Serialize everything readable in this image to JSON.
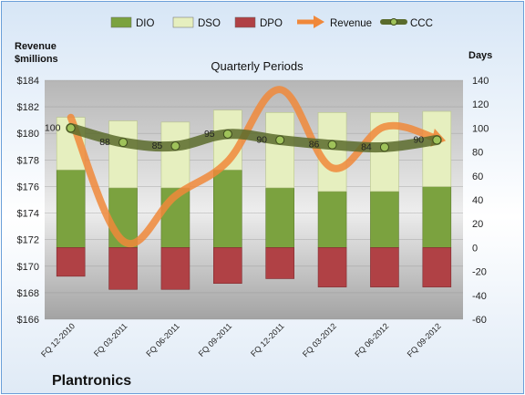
{
  "chart_data": {
    "type": "bar",
    "title": "Quarterly Periods",
    "company": "Plantronics",
    "left_axis_label": "Revenue\n$millions",
    "right_axis_label": "Days",
    "left_axis": {
      "min": 166,
      "max": 184,
      "step": 2,
      "prefix": "$"
    },
    "right_axis": {
      "min": -60,
      "max": 140,
      "step": 20
    },
    "categories": [
      "FQ 12-2010",
      "FQ 03-2011",
      "FQ 06-2011",
      "FQ 09-2011",
      "FQ 12-2011",
      "FQ 03-2012",
      "FQ 06-2012",
      "FQ 09-2012"
    ],
    "legend_position": "top",
    "series": [
      {
        "name": "DIO",
        "kind": "stacked-bar",
        "axis": "right",
        "color": "#7ba23f",
        "values": [
          65,
          50,
          50,
          65,
          50,
          47,
          47,
          51
        ]
      },
      {
        "name": "DSO",
        "kind": "stacked-bar",
        "axis": "right",
        "color": "#e6efbf",
        "values": [
          44,
          56,
          55,
          50,
          63,
          66,
          66,
          63
        ]
      },
      {
        "name": "DPO",
        "kind": "stacked-bar",
        "axis": "right",
        "color": "#b04145",
        "values": [
          -24,
          -35,
          -35,
          -30,
          -26,
          -33,
          -33,
          -33
        ]
      },
      {
        "name": "Revenue",
        "kind": "line",
        "axis": "left",
        "color": "#f0883a",
        "values": [
          181.2,
          171.9,
          175.3,
          177.9,
          183.3,
          177.4,
          180.5,
          179.6
        ]
      },
      {
        "name": "CCC",
        "kind": "line",
        "axis": "right",
        "color": "#5a6b2c",
        "values": [
          100,
          88,
          85,
          95,
          90,
          86,
          84,
          90
        ]
      }
    ],
    "ccc_labels": [
      "100",
      "88",
      "85",
      "95",
      "90",
      "86",
      "84",
      "90"
    ]
  }
}
